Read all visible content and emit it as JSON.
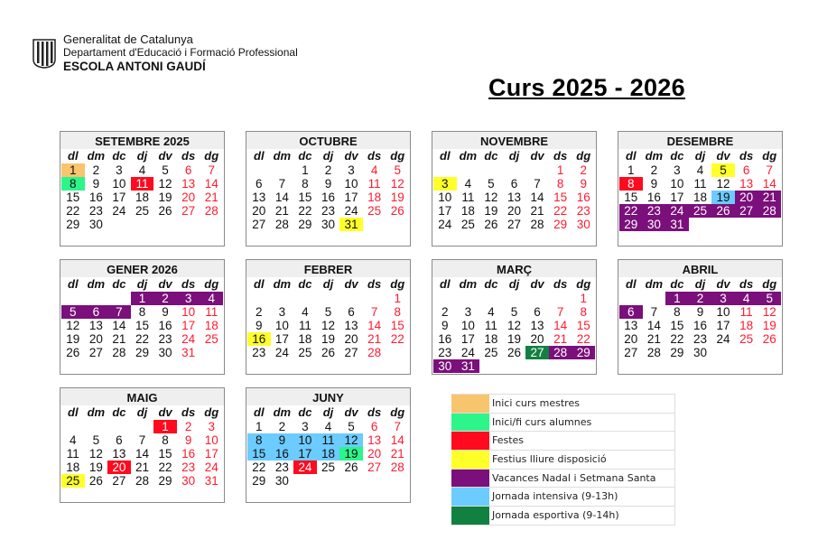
{
  "header": {
    "org_line1": "Generalitat de Catalunya",
    "org_line2": "Departament d'Educació i Formació Professional",
    "school": "ESCOLA ANTONI GAUDÍ",
    "logo_icon": "generalitat-stripes-logo",
    "title": "Curs 2025 - 2026"
  },
  "weekdays": [
    "dl",
    "dm",
    "dc",
    "dj",
    "dv",
    "ds",
    "dg"
  ],
  "colors": {
    "mestres": "#f9c46e",
    "alumnes": "#2cf58a",
    "festa": "#ff0a1e",
    "lliure": "#ffff2a",
    "vacances": "#7b0f7b",
    "intensiva": "#6ccbff",
    "esportiva": "#128041"
  },
  "months": [
    {
      "name": "SETEMBRE 2025",
      "first_weekday": 0,
      "days": 30,
      "marks": {
        "1": "mestres",
        "8": "alumnes",
        "11": "festa"
      }
    },
    {
      "name": "OCTUBRE",
      "first_weekday": 2,
      "days": 31,
      "marks": {
        "31": "lliure"
      }
    },
    {
      "name": "NOVEMBRE",
      "first_weekday": 5,
      "days": 30,
      "marks": {
        "3": "lliure"
      }
    },
    {
      "name": "DESEMBRE",
      "first_weekday": 0,
      "days": 31,
      "marks": {
        "5": "lliure",
        "8": "festa",
        "19": "intensiva",
        "20": "vacances",
        "21": "vacances",
        "22": "vacances",
        "23": "vacances",
        "24": "vacances",
        "25": "vacances",
        "26": "vacances",
        "27": "vacances",
        "28": "vacances",
        "29": "vacances",
        "30": "vacances",
        "31": "vacances"
      }
    },
    {
      "name": "GENER 2026",
      "first_weekday": 3,
      "days": 31,
      "marks": {
        "1": "vacances",
        "2": "vacances",
        "3": "vacances",
        "4": "vacances",
        "5": "vacances",
        "6": "vacances",
        "7": "vacances"
      }
    },
    {
      "name": "FEBRER",
      "first_weekday": 6,
      "days": 28,
      "marks": {
        "16": "lliure"
      }
    },
    {
      "name": "MARÇ",
      "first_weekday": 6,
      "days": 31,
      "marks": {
        "27": "esportiva",
        "28": "vacances",
        "29": "vacances",
        "30": "vacances",
        "31": "vacances"
      }
    },
    {
      "name": "ABRIL",
      "first_weekday": 2,
      "days": 30,
      "marks": {
        "1": "vacances",
        "2": "vacances",
        "3": "vacances",
        "4": "vacances",
        "5": "vacances",
        "6": "vacances"
      }
    },
    {
      "name": "MAIG",
      "first_weekday": 4,
      "days": 31,
      "marks": {
        "1": "festa",
        "20": "festa",
        "25": "lliure"
      }
    },
    {
      "name": "JUNY",
      "first_weekday": 0,
      "days": 30,
      "marks": {
        "8": "intensiva",
        "9": "intensiva",
        "10": "intensiva",
        "11": "intensiva",
        "12": "intensiva",
        "15": "intensiva",
        "16": "intensiva",
        "17": "intensiva",
        "18": "intensiva",
        "19": "alumnes",
        "24": "festa"
      }
    }
  ],
  "legend": [
    {
      "key": "mestres",
      "label": "Inici curs mestres"
    },
    {
      "key": "alumnes",
      "label": "Inici/fi curs alumnes"
    },
    {
      "key": "festa",
      "label": "Festes"
    },
    {
      "key": "lliure",
      "label": "Festius lliure disposició"
    },
    {
      "key": "vacances",
      "label": "Vacances Nadal i Setmana Santa"
    },
    {
      "key": "intensiva",
      "label": "Jornada intensiva (9-13h)"
    },
    {
      "key": "esportiva",
      "label": "Jornada esportiva (9-14h)"
    }
  ]
}
